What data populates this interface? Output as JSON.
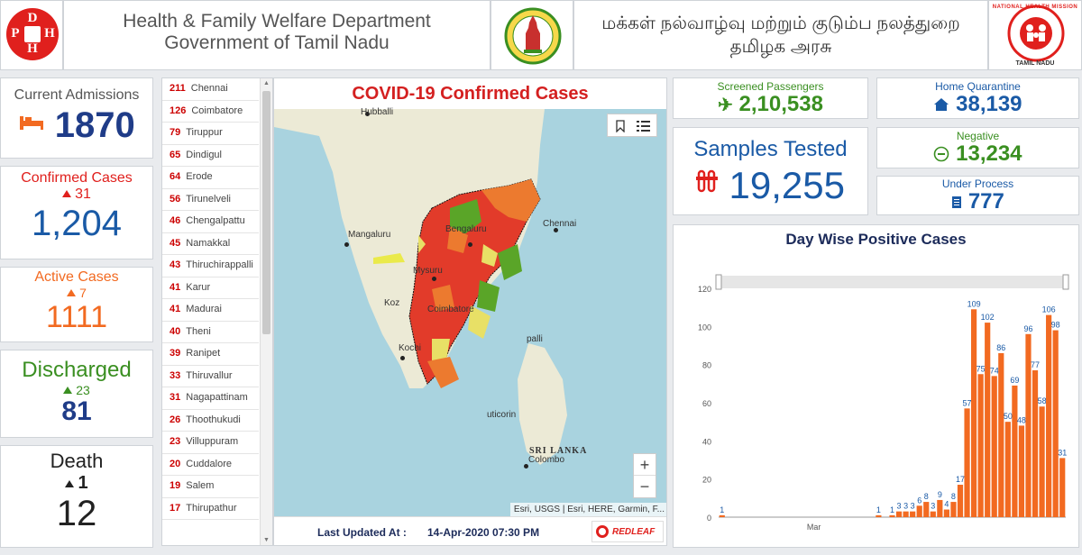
{
  "header": {
    "dph_letters": [
      "D",
      "P",
      "H",
      "H"
    ],
    "dept_line1": "Health & Family Welfare Department",
    "dept_line2": "Government of Tamil Nadu",
    "tamil_line1": "மக்கள் நல்வாழ்வு மற்றும் குடும்ப நலத்துறை",
    "tamil_line2": "தமிழக அரசு",
    "nhm_text": "NATIONAL HEALTH MISSION",
    "nhm_sub": "TAMIL NADU"
  },
  "stats": {
    "current_admissions": {
      "title": "Current Admissions",
      "value": "1870",
      "icon": "bed-icon",
      "color": "#1f3c88"
    },
    "confirmed": {
      "title": "Confirmed Cases",
      "delta": "31",
      "value": "1,204",
      "color": "#e0201d",
      "value_color": "#1a5aa6"
    },
    "active": {
      "title": "Active Cases",
      "delta": "7",
      "value": "1111",
      "color": "#f26a21"
    },
    "discharged": {
      "title": "Discharged",
      "delta": "23",
      "value": "81",
      "color": "#3a8f21",
      "value_color": "#1f3c88"
    },
    "death": {
      "title": "Death",
      "delta": "1",
      "value": "12",
      "color": "#222"
    }
  },
  "districts": [
    {
      "num": "211",
      "name": "Chennai"
    },
    {
      "num": "126",
      "name": "Coimbatore"
    },
    {
      "num": "79",
      "name": "Tiruppur"
    },
    {
      "num": "65",
      "name": "Dindigul"
    },
    {
      "num": "64",
      "name": "Erode"
    },
    {
      "num": "56",
      "name": "Tirunelveli"
    },
    {
      "num": "46",
      "name": "Chengalpattu"
    },
    {
      "num": "45",
      "name": "Namakkal"
    },
    {
      "num": "43",
      "name": "Thiruchirappalli"
    },
    {
      "num": "41",
      "name": "Karur"
    },
    {
      "num": "41",
      "name": "Madurai"
    },
    {
      "num": "40",
      "name": "Theni"
    },
    {
      "num": "39",
      "name": "Ranipet"
    },
    {
      "num": "33",
      "name": "Thiruvallur"
    },
    {
      "num": "31",
      "name": "Nagapattinam"
    },
    {
      "num": "26",
      "name": "Thoothukudi"
    },
    {
      "num": "23",
      "name": "Villuppuram"
    },
    {
      "num": "20",
      "name": "Cuddalore"
    },
    {
      "num": "19",
      "name": "Salem"
    },
    {
      "num": "17",
      "name": "Thirupathur"
    }
  ],
  "map": {
    "title": "COVID-19 Confirmed Cases",
    "labels": {
      "hubballi": "Hubballi",
      "chennai": "Chennai",
      "bengaluru": "Bengaluru",
      "mangaluru": "Mangaluru",
      "mysuru": "Mysuru",
      "kozhikode": "Koz",
      "coimbatore": "Coimbatore",
      "pondicherry": "palli",
      "kochi": "Kochi",
      "tuticorin": "uticorin",
      "srilanka": "SRI LANKA",
      "colombo": "Colombo"
    },
    "attribution": "Esri, USGS | Esri, HERE, Garmin, F...",
    "zoom_in": "+",
    "zoom_out": "−",
    "last_updated_label": "Last Updated At  :",
    "last_updated_value": "14-Apr-2020 07:30 PM",
    "brand": "REDLEAF"
  },
  "right": {
    "screened": {
      "title": "Screened Passengers",
      "value": "2,10,538",
      "icon": "plane-icon",
      "color": "#3a8f21"
    },
    "home_quarantine": {
      "title": "Home Quarantine",
      "value": "38,139",
      "icon": "house-icon",
      "color": "#1a5aa6"
    },
    "samples": {
      "title": "Samples Tested",
      "value": "19,255",
      "icon": "test-tube-icon",
      "title_color": "#1a5aa6",
      "value_color": "#1a5aa6",
      "icon_color": "#e0201d"
    },
    "negative": {
      "title": "Negative",
      "value": "13,234",
      "icon": "minus-circle-icon",
      "color": "#3a8f21"
    },
    "under_process": {
      "title": "Under Process",
      "value": "777",
      "icon": "clipboard-icon",
      "color": "#1a5aa6"
    }
  },
  "chart_data": {
    "type": "bar",
    "title": "Day Wise Positive Cases",
    "xlabel": "",
    "ylabel": "",
    "ylim": [
      0,
      120
    ],
    "yticks": [
      0,
      20,
      40,
      60,
      80,
      100,
      120
    ],
    "x_tick_label": "Mar",
    "bar_color": "#f26a21",
    "values": [
      1,
      0,
      0,
      0,
      0,
      0,
      0,
      0,
      0,
      0,
      0,
      0,
      0,
      0,
      0,
      0,
      0,
      0,
      0,
      0,
      0,
      0,
      0,
      1,
      0,
      1,
      3,
      3,
      3,
      6,
      8,
      3,
      9,
      4,
      8,
      17,
      57,
      109,
      75,
      102,
      74,
      86,
      50,
      69,
      48,
      96,
      77,
      58,
      106,
      98,
      31
    ],
    "labeled_values": [
      1,
      1,
      1,
      3,
      3,
      3,
      6,
      8,
      3,
      9,
      4,
      8,
      17,
      57,
      109,
      75,
      102,
      74,
      86,
      50,
      69,
      48,
      96,
      77,
      58,
      106,
      98,
      31
    ],
    "grid": false
  }
}
